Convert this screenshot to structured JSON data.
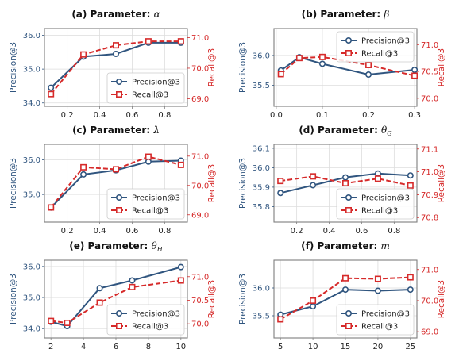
{
  "colors": {
    "precision": "#30557f",
    "recall": "#d62a2a",
    "grid": "#dddddd",
    "frame": "#7f7f7f"
  },
  "chart_data": [
    {
      "type": "line",
      "title_prefix": "(a) Parameter: ",
      "title_symbol": "α",
      "ylabel_left": "Precision@3",
      "ylabel_right": "Recall@3",
      "x": [
        0.1,
        0.3,
        0.5,
        0.7,
        0.9
      ],
      "xticks": [
        "0.2",
        "0.4",
        "0.6",
        "0.8"
      ],
      "xtick_values": [
        0.2,
        0.4,
        0.6,
        0.8
      ],
      "xlim": [
        0.06,
        0.94
      ],
      "ylim_left": [
        33.9,
        36.2
      ],
      "yticks_left": [
        "34.0",
        "35.0",
        "36.0"
      ],
      "ytick_values_left": [
        34.0,
        35.0,
        36.0
      ],
      "ylim_right": [
        68.75,
        71.3
      ],
      "yticks_right": [
        "69.0",
        "70.0",
        "71.0"
      ],
      "ytick_values_right": [
        69.0,
        70.0,
        71.0
      ],
      "legend_position": "lower-right",
      "series": [
        {
          "name": "Precision@3",
          "axis": "left",
          "style": "solid-circle",
          "values": [
            34.45,
            35.37,
            35.45,
            35.78,
            35.78
          ]
        },
        {
          "name": "Recall@3",
          "axis": "right",
          "style": "dashed-square",
          "values": [
            69.15,
            70.45,
            70.75,
            70.88,
            70.88
          ]
        }
      ]
    },
    {
      "type": "line",
      "title_prefix": "(b) Parameter: ",
      "title_symbol": "β",
      "ylabel_left": "Precision@3",
      "ylabel_right": "Recall@3",
      "x": [
        0.01,
        0.05,
        0.1,
        0.2,
        0.3
      ],
      "xticks": [
        "0.0",
        "0.1",
        "0.2",
        "0.3"
      ],
      "xtick_values": [
        0.0,
        0.1,
        0.2,
        0.3
      ],
      "xlim": [
        -0.005,
        0.305
      ],
      "ylim_left": [
        35.15,
        36.45
      ],
      "yticks_left": [
        "35.5",
        "36.0"
      ],
      "ytick_values_left": [
        35.5,
        36.0
      ],
      "ylim_right": [
        69.85,
        71.3
      ],
      "yticks_right": [
        "70.0",
        "70.5",
        "71.0"
      ],
      "ytick_values_right": [
        70.0,
        70.5,
        71.0
      ],
      "legend_position": "upper-right",
      "series": [
        {
          "name": "Precision@3",
          "axis": "left",
          "style": "solid-circle",
          "values": [
            35.75,
            35.97,
            35.86,
            35.68,
            35.76
          ]
        },
        {
          "name": "Recall@3",
          "axis": "right",
          "style": "dashed-square",
          "values": [
            70.45,
            70.75,
            70.77,
            70.62,
            70.42
          ]
        }
      ]
    },
    {
      "type": "line",
      "title_prefix": "(c) Parameter: ",
      "title_symbol": "λ",
      "ylabel_left": "Precision@3",
      "ylabel_right": "Recall@3",
      "x": [
        0.1,
        0.3,
        0.5,
        0.7,
        0.9
      ],
      "xticks": [
        "0.2",
        "0.4",
        "0.6",
        "0.8"
      ],
      "xtick_values": [
        0.2,
        0.4,
        0.6,
        0.8
      ],
      "xlim": [
        0.06,
        0.94
      ],
      "ylim_left": [
        34.2,
        36.45
      ],
      "yticks_left": [
        "35.0",
        "36.0"
      ],
      "ytick_values_left": [
        35.0,
        36.0
      ],
      "ylim_right": [
        68.75,
        71.4
      ],
      "yticks_right": [
        "69.0",
        "70.0",
        "71.0"
      ],
      "ytick_values_right": [
        69.0,
        70.0,
        71.0
      ],
      "legend_position": "lower-right",
      "series": [
        {
          "name": "Precision@3",
          "axis": "left",
          "style": "solid-circle",
          "values": [
            34.62,
            35.58,
            35.7,
            35.95,
            35.98
          ]
        },
        {
          "name": "Recall@3",
          "axis": "right",
          "style": "dashed-square",
          "values": [
            69.25,
            70.62,
            70.55,
            70.98,
            70.7
          ]
        }
      ]
    },
    {
      "type": "line",
      "title_prefix": "(d) Parameter: ",
      "title_symbol": "θ",
      "title_subscript": "G",
      "ylabel_left": "Precision@3",
      "ylabel_right": "Recall@3",
      "x": [
        0.1,
        0.3,
        0.5,
        0.7,
        0.9
      ],
      "xticks": [
        "0.2",
        "0.4",
        "0.6",
        "0.8"
      ],
      "xtick_values": [
        0.2,
        0.4,
        0.6,
        0.8
      ],
      "xlim": [
        0.06,
        0.94
      ],
      "ylim_left": [
        35.72,
        36.12
      ],
      "yticks_left": [
        "35.8",
        "35.9",
        "36.0",
        "36.1"
      ],
      "ytick_values_left": [
        35.8,
        35.9,
        36.0,
        36.1
      ],
      "ylim_right": [
        70.78,
        71.12
      ],
      "yticks_right": [
        "70.8",
        "70.9",
        "71.0",
        "71.1"
      ],
      "ytick_values_right": [
        70.8,
        70.9,
        71.0,
        71.1
      ],
      "legend_position": "lower-right",
      "series": [
        {
          "name": "Precision@3",
          "axis": "left",
          "style": "solid-circle",
          "values": [
            35.87,
            35.91,
            35.95,
            35.97,
            35.96
          ]
        },
        {
          "name": "Recall@3",
          "axis": "right",
          "style": "dashed-square",
          "values": [
            70.96,
            70.98,
            70.95,
            70.97,
            70.94
          ]
        }
      ]
    },
    {
      "type": "line",
      "title_prefix": "(e) Parameter: ",
      "title_symbol": "θ",
      "title_subscript": "H",
      "ylabel_left": "Precision@3",
      "ylabel_right": "Recall@3",
      "x": [
        2,
        3,
        5,
        7,
        10
      ],
      "xticks": [
        "2",
        "4",
        "6",
        "8",
        "10"
      ],
      "xtick_values": [
        2,
        4,
        6,
        8,
        10
      ],
      "xlim": [
        1.6,
        10.4
      ],
      "ylim_left": [
        33.7,
        36.2
      ],
      "yticks_left": [
        "34.0",
        "35.0",
        "36.0"
      ],
      "ytick_values_left": [
        34.0,
        35.0,
        36.0
      ],
      "ylim_right": [
        69.7,
        71.35
      ],
      "yticks_right": [
        "70.0",
        "70.5",
        "71.0"
      ],
      "ytick_values_right": [
        70.0,
        70.5,
        71.0
      ],
      "legend_position": "lower-right",
      "series": [
        {
          "name": "Precision@3",
          "axis": "left",
          "style": "solid-circle",
          "values": [
            34.22,
            34.08,
            35.3,
            35.55,
            35.98
          ]
        },
        {
          "name": "Recall@3",
          "axis": "right",
          "style": "dashed-square",
          "values": [
            70.06,
            70.02,
            70.45,
            70.78,
            70.92
          ]
        }
      ]
    },
    {
      "type": "line",
      "title_prefix": "(f) Parameter: ",
      "title_symbol": "m",
      "ylabel_left": "Precision@3",
      "ylabel_right": "Recall@3",
      "x": [
        5,
        10,
        15,
        20,
        25
      ],
      "xticks": [
        "5",
        "10",
        "15",
        "20",
        "25"
      ],
      "xtick_values": [
        5,
        10,
        15,
        20,
        25
      ],
      "xlim": [
        4,
        26
      ],
      "ylim_left": [
        35.1,
        36.5
      ],
      "yticks_left": [
        "35.5",
        "36.0"
      ],
      "ytick_values_left": [
        35.5,
        36.0
      ],
      "ylim_right": [
        68.8,
        71.3
      ],
      "yticks_right": [
        "69.0",
        "70.0",
        "71.0"
      ],
      "ytick_values_right": [
        69.0,
        70.0,
        71.0
      ],
      "legend_position": "lower-right",
      "series": [
        {
          "name": "Precision@3",
          "axis": "left",
          "style": "solid-circle",
          "values": [
            35.52,
            35.67,
            35.97,
            35.95,
            35.97
          ]
        },
        {
          "name": "Recall@3",
          "axis": "right",
          "style": "dashed-square",
          "values": [
            69.4,
            70.0,
            70.72,
            70.7,
            70.75
          ]
        }
      ]
    }
  ]
}
